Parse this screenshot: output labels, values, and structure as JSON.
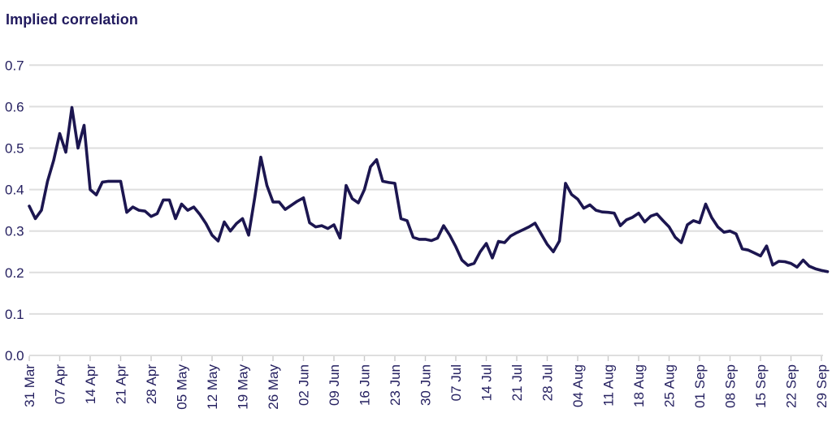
{
  "chart_data": {
    "type": "line",
    "title": "Implied correlation",
    "series_name": "Implied correlation",
    "xlabel": "",
    "ylabel": "",
    "ylim": [
      0.0,
      0.7
    ],
    "grid": "horizontal",
    "legend": "none",
    "line_color": "#1c1650",
    "label_color": "#252060",
    "grid_color": "#dedede",
    "tick_color": "#c9c9c9",
    "y_tick_labels": [
      "0.0",
      "0.1",
      "0.2",
      "0.3",
      "0.4",
      "0.5",
      "0.6",
      "0.7"
    ],
    "x_tick_labels": [
      "31 Mar",
      "07 Apr",
      "14 Apr",
      "21 Apr",
      "28 Apr",
      "05 May",
      "12 May",
      "19 May",
      "26 May",
      "02 Jun",
      "09 Jun",
      "16 Jun",
      "23 Jun",
      "30 Jun",
      "07 Jul",
      "14 Jul",
      "21 Jul",
      "28 Jul",
      "04 Aug",
      "11 Aug",
      "18 Aug",
      "25 Aug",
      "01 Sep",
      "08 Sep",
      "15 Sep",
      "22 Sep",
      "29 Sep"
    ],
    "x": [
      "31 Mar",
      "01 Apr",
      "02 Apr",
      "03 Apr",
      "04 Apr",
      "07 Apr",
      "08 Apr",
      "09 Apr",
      "10 Apr",
      "11 Apr",
      "14 Apr",
      "15 Apr",
      "16 Apr",
      "17 Apr",
      "18 Apr",
      "21 Apr",
      "22 Apr",
      "23 Apr",
      "24 Apr",
      "25 Apr",
      "28 Apr",
      "29 Apr",
      "30 Apr",
      "01 May",
      "02 May",
      "05 May",
      "06 May",
      "07 May",
      "08 May",
      "09 May",
      "12 May",
      "13 May",
      "14 May",
      "15 May",
      "16 May",
      "19 May",
      "20 May",
      "21 May",
      "22 May",
      "23 May",
      "26 May",
      "27 May",
      "28 May",
      "29 May",
      "30 May",
      "02 Jun",
      "03 Jun",
      "04 Jun",
      "05 Jun",
      "06 Jun",
      "09 Jun",
      "10 Jun",
      "11 Jun",
      "12 Jun",
      "13 Jun",
      "16 Jun",
      "17 Jun",
      "18 Jun",
      "19 Jun",
      "20 Jun",
      "23 Jun",
      "24 Jun",
      "25 Jun",
      "26 Jun",
      "27 Jun",
      "30 Jun",
      "01 Jul",
      "02 Jul",
      "03 Jul",
      "04 Jul",
      "07 Jul",
      "08 Jul",
      "09 Jul",
      "10 Jul",
      "11 Jul",
      "14 Jul",
      "15 Jul",
      "16 Jul",
      "17 Jul",
      "18 Jul",
      "21 Jul",
      "22 Jul",
      "23 Jul",
      "24 Jul",
      "25 Jul",
      "28 Jul",
      "29 Jul",
      "30 Jul",
      "31 Jul",
      "01 Aug",
      "04 Aug",
      "05 Aug",
      "06 Aug",
      "07 Aug",
      "08 Aug",
      "11 Aug",
      "12 Aug",
      "13 Aug",
      "14 Aug",
      "15 Aug",
      "18 Aug",
      "19 Aug",
      "20 Aug",
      "21 Aug",
      "22 Aug",
      "25 Aug",
      "26 Aug",
      "27 Aug",
      "28 Aug",
      "29 Aug",
      "01 Sep",
      "02 Sep",
      "03 Sep",
      "04 Sep",
      "05 Sep",
      "08 Sep",
      "09 Sep",
      "10 Sep",
      "11 Sep",
      "12 Sep",
      "15 Sep",
      "16 Sep",
      "17 Sep",
      "18 Sep",
      "19 Sep",
      "22 Sep",
      "23 Sep",
      "24 Sep",
      "25 Sep",
      "26 Sep",
      "29 Sep",
      "30 Sep"
    ],
    "values": [
      0.36,
      0.33,
      0.35,
      0.42,
      0.47,
      0.535,
      0.49,
      0.598,
      0.5,
      0.555,
      0.4,
      0.387,
      0.418,
      0.42,
      0.42,
      0.42,
      0.345,
      0.358,
      0.35,
      0.348,
      0.335,
      0.342,
      0.375,
      0.375,
      0.33,
      0.365,
      0.35,
      0.358,
      0.34,
      0.318,
      0.29,
      0.276,
      0.322,
      0.3,
      0.318,
      0.33,
      0.29,
      0.38,
      0.478,
      0.41,
      0.37,
      0.37,
      0.352,
      0.362,
      0.372,
      0.38,
      0.32,
      0.31,
      0.313,
      0.306,
      0.315,
      0.283,
      0.41,
      0.378,
      0.368,
      0.4,
      0.455,
      0.472,
      0.42,
      0.417,
      0.415,
      0.33,
      0.325,
      0.285,
      0.28,
      0.28,
      0.277,
      0.283,
      0.313,
      0.29,
      0.262,
      0.23,
      0.217,
      0.222,
      0.25,
      0.27,
      0.235,
      0.275,
      0.272,
      0.288,
      0.296,
      0.303,
      0.31,
      0.319,
      0.293,
      0.268,
      0.25,
      0.276,
      0.415,
      0.388,
      0.377,
      0.355,
      0.363,
      0.35,
      0.346,
      0.345,
      0.343,
      0.313,
      0.327,
      0.333,
      0.343,
      0.322,
      0.336,
      0.341,
      0.325,
      0.31,
      0.285,
      0.272,
      0.315,
      0.325,
      0.32,
      0.365,
      0.332,
      0.31,
      0.297,
      0.3,
      0.293,
      0.257,
      0.254,
      0.247,
      0.24,
      0.264,
      0.218,
      0.227,
      0.226,
      0.222,
      0.213,
      0.23,
      0.215,
      0.209,
      0.205,
      0.202
    ]
  }
}
